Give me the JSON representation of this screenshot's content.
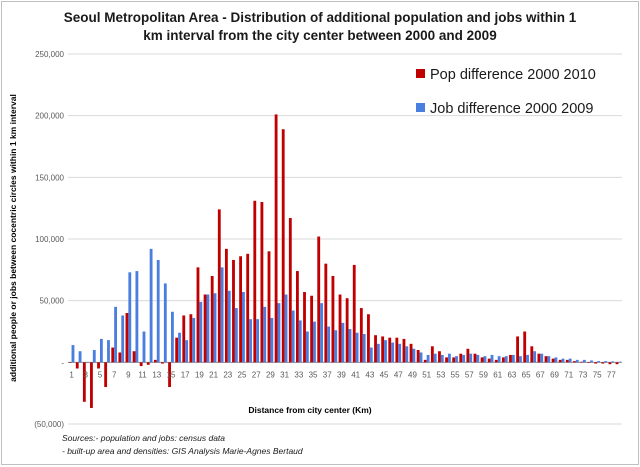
{
  "chart_data": {
    "type": "bar",
    "title_lines": [
      "Seoul Metropolitan Area - Distribution of additional population and jobs within 1",
      "km interval from the city center between 2000 and 2009"
    ],
    "xlabel": "Distance from city center (Km)",
    "ylabel": "additional people or jobs  between cocentric circles within 1 km interval",
    "ylim": [
      -50000,
      250000
    ],
    "y_ticks": [
      -50000,
      0,
      50000,
      100000,
      150000,
      200000,
      250000
    ],
    "y_tick_labels": [
      "(50,000)",
      "-",
      "50,000",
      "100,000",
      "150,000",
      "200,000",
      "250,000"
    ],
    "x_tick_labels": [
      "1",
      "3",
      "5",
      "7",
      "9",
      "11",
      "13",
      "15",
      "17",
      "19",
      "21",
      "23",
      "25",
      "27",
      "29",
      "31",
      "33",
      "35",
      "37",
      "39",
      "41",
      "43",
      "45",
      "47",
      "49",
      "51",
      "53",
      "55",
      "57",
      "59",
      "61",
      "63",
      "65",
      "67",
      "69",
      "71",
      "73",
      "75",
      "77"
    ],
    "grid": true,
    "legend_position": "top-right",
    "categories": [
      1,
      2,
      3,
      4,
      5,
      6,
      7,
      8,
      9,
      10,
      11,
      12,
      13,
      14,
      15,
      16,
      17,
      18,
      19,
      20,
      21,
      22,
      23,
      24,
      25,
      26,
      27,
      28,
      29,
      30,
      31,
      32,
      33,
      34,
      35,
      36,
      37,
      38,
      39,
      40,
      41,
      42,
      43,
      44,
      45,
      46,
      47,
      48,
      49,
      50,
      51,
      52,
      53,
      54,
      55,
      56,
      57,
      58,
      59,
      60,
      61,
      62,
      63,
      64,
      65,
      66,
      67,
      68,
      69,
      70,
      71,
      72,
      73,
      74,
      75,
      76,
      77,
      78
    ],
    "series": [
      {
        "name": "Pop difference 2000 2010",
        "color": "#c00000",
        "values": [
          0,
          -5000,
          -32000,
          -37000,
          -5000,
          -20000,
          12000,
          8000,
          40000,
          9000,
          -3000,
          -2000,
          2000,
          -1000,
          -20000,
          20000,
          38000,
          39000,
          77000,
          55000,
          70000,
          124000,
          92000,
          83000,
          86000,
          88000,
          131000,
          130000,
          90000,
          201000,
          189000,
          117000,
          74000,
          57000,
          54000,
          102000,
          80000,
          70000,
          55000,
          52000,
          79000,
          44000,
          39000,
          22000,
          21000,
          20000,
          20000,
          19000,
          15000,
          10000,
          2000,
          13000,
          9000,
          4000,
          4000,
          7000,
          11000,
          7000,
          4000,
          3000,
          2000,
          4000,
          6000,
          21000,
          25000,
          13000,
          7000,
          5000,
          3000,
          2000,
          2000,
          1000,
          500,
          -500,
          -1000,
          -1000,
          -1500,
          -1500
        ]
      },
      {
        "name": "Job difference 2000 2009",
        "color": "#4a7fe0",
        "values": [
          14000,
          9000,
          0,
          10000,
          19000,
          18000,
          45000,
          38000,
          73000,
          74000,
          25000,
          92000,
          83000,
          64000,
          41000,
          24000,
          18000,
          36000,
          49000,
          55000,
          56000,
          77000,
          58000,
          44000,
          57000,
          35000,
          35000,
          45000,
          36000,
          48000,
          55000,
          42000,
          34000,
          25000,
          33000,
          48000,
          29000,
          26000,
          32000,
          27000,
          24000,
          23000,
          12000,
          15000,
          18000,
          16000,
          15000,
          13000,
          11000,
          8000,
          6000,
          7000,
          6000,
          7000,
          5000,
          6000,
          7000,
          6000,
          5000,
          6000,
          5000,
          5000,
          6000,
          5000,
          6000,
          9000,
          7000,
          5000,
          4000,
          3000,
          3000,
          2000,
          2000,
          1500,
          1000,
          1000,
          800,
          500
        ]
      }
    ],
    "source_lines": [
      "Sources:- population  and jobs: census data",
      "- built-up area and densities: GIS Analysis Marie-Agnes Bertaud"
    ]
  }
}
